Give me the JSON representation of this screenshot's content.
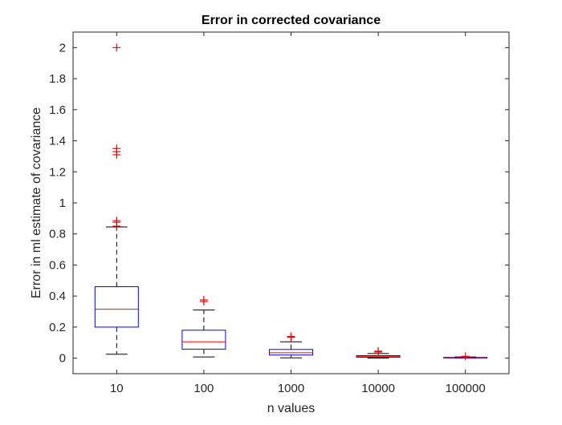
{
  "chart_data": {
    "type": "box",
    "title": "Error in corrected covariance",
    "xlabel": "n values",
    "ylabel": "Error in ml estimate of covariance",
    "ylim": [
      -0.1,
      2.1
    ],
    "yticks": [
      0,
      0.2,
      0.4,
      0.6,
      0.8,
      1,
      1.2,
      1.4,
      1.6,
      1.8,
      2
    ],
    "ytick_labels": [
      "0",
      "0.2",
      "0.4",
      "0.6",
      "0.8",
      "1",
      "1.2",
      "1.4",
      "1.6",
      "1.8",
      "2"
    ],
    "categories": [
      "10",
      "100",
      "1000",
      "10000",
      "100000"
    ],
    "boxes": [
      {
        "category": "10",
        "whisker_low": 0.025,
        "q1": 0.2,
        "median": 0.315,
        "q3": 0.46,
        "whisker_high": 0.845,
        "outliers": [
          2.0,
          1.35,
          1.33,
          1.31,
          0.885,
          0.875,
          0.85
        ]
      },
      {
        "category": "100",
        "whisker_low": 0.008,
        "q1": 0.058,
        "median": 0.105,
        "q3": 0.18,
        "whisker_high": 0.31,
        "outliers": [
          0.375,
          0.365
        ]
      },
      {
        "category": "1000",
        "whisker_low": 0.002,
        "q1": 0.02,
        "median": 0.035,
        "q3": 0.056,
        "whisker_high": 0.105,
        "outliers": [
          0.14,
          0.135
        ]
      },
      {
        "category": "10000",
        "whisker_low": 0.0,
        "q1": 0.006,
        "median": 0.01,
        "q3": 0.016,
        "whisker_high": 0.03,
        "outliers": [
          0.045,
          0.04
        ]
      },
      {
        "category": "100000",
        "whisker_low": 0.0,
        "q1": 0.002,
        "median": 0.003,
        "q3": 0.005,
        "whisker_high": 0.008,
        "outliers": [
          0.012
        ]
      }
    ],
    "grid": false,
    "legend": "none",
    "colors": {
      "box": "#0000ff",
      "median": "#ff0000",
      "outlier": "#ff0000",
      "whisker": "#000000",
      "axes": "#262626"
    }
  }
}
